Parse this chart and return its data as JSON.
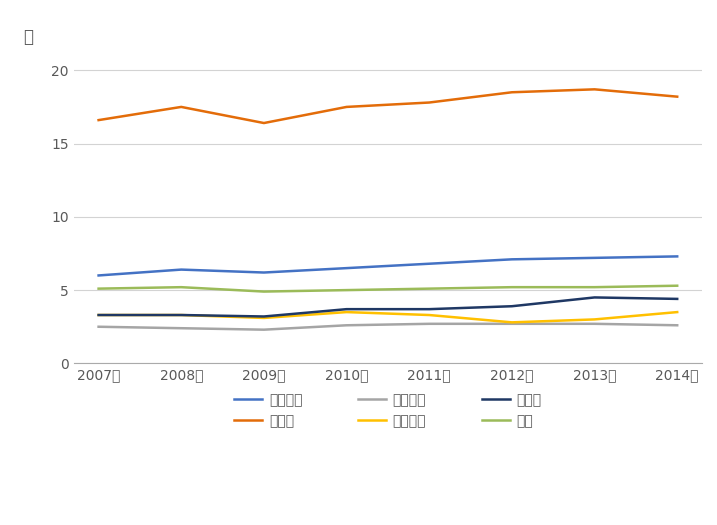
{
  "years": [
    "2007年",
    "2008年",
    "2009年",
    "2010年",
    "2011年",
    "2012年",
    "2013年",
    "2014年"
  ],
  "series": {
    "フランス": {
      "values": [
        6.0,
        6.4,
        6.2,
        6.5,
        6.8,
        7.1,
        7.2,
        7.3
      ],
      "color": "#4472C4",
      "linewidth": 1.8
    },
    "ドイツ": {
      "values": [
        16.6,
        17.5,
        16.4,
        17.5,
        17.8,
        18.5,
        18.7,
        18.2
      ],
      "color": "#E36C09",
      "linewidth": 1.8
    },
    "イタリア": {
      "values": [
        2.5,
        2.4,
        2.3,
        2.6,
        2.7,
        2.7,
        2.7,
        2.6
      ],
      "color": "#A5A5A5",
      "linewidth": 1.8
    },
    "オランダ": {
      "values": [
        3.3,
        3.3,
        3.1,
        3.5,
        3.3,
        2.8,
        3.0,
        3.5
      ],
      "color": "#FFC000",
      "linewidth": 1.8
    },
    "スイス": {
      "values": [
        3.3,
        3.3,
        3.2,
        3.7,
        3.7,
        3.9,
        4.5,
        4.4
      ],
      "color": "#1F3864",
      "linewidth": 1.8
    },
    "英国": {
      "values": [
        5.1,
        5.2,
        4.9,
        5.0,
        5.1,
        5.2,
        5.2,
        5.3
      ],
      "color": "#9BBB59",
      "linewidth": 1.8
    }
  },
  "ylabel": "万",
  "yticks": [
    0,
    5,
    10,
    15,
    20
  ],
  "ylim": [
    0,
    21
  ],
  "xlim": [
    -0.3,
    7.3
  ],
  "legend_order": [
    "フランス",
    "ドイツ",
    "イタリア",
    "オランダ",
    "スイス",
    "英国"
  ],
  "background_color": "#FFFFFF",
  "grid_color": "#D3D3D3",
  "text_color": "#595959"
}
